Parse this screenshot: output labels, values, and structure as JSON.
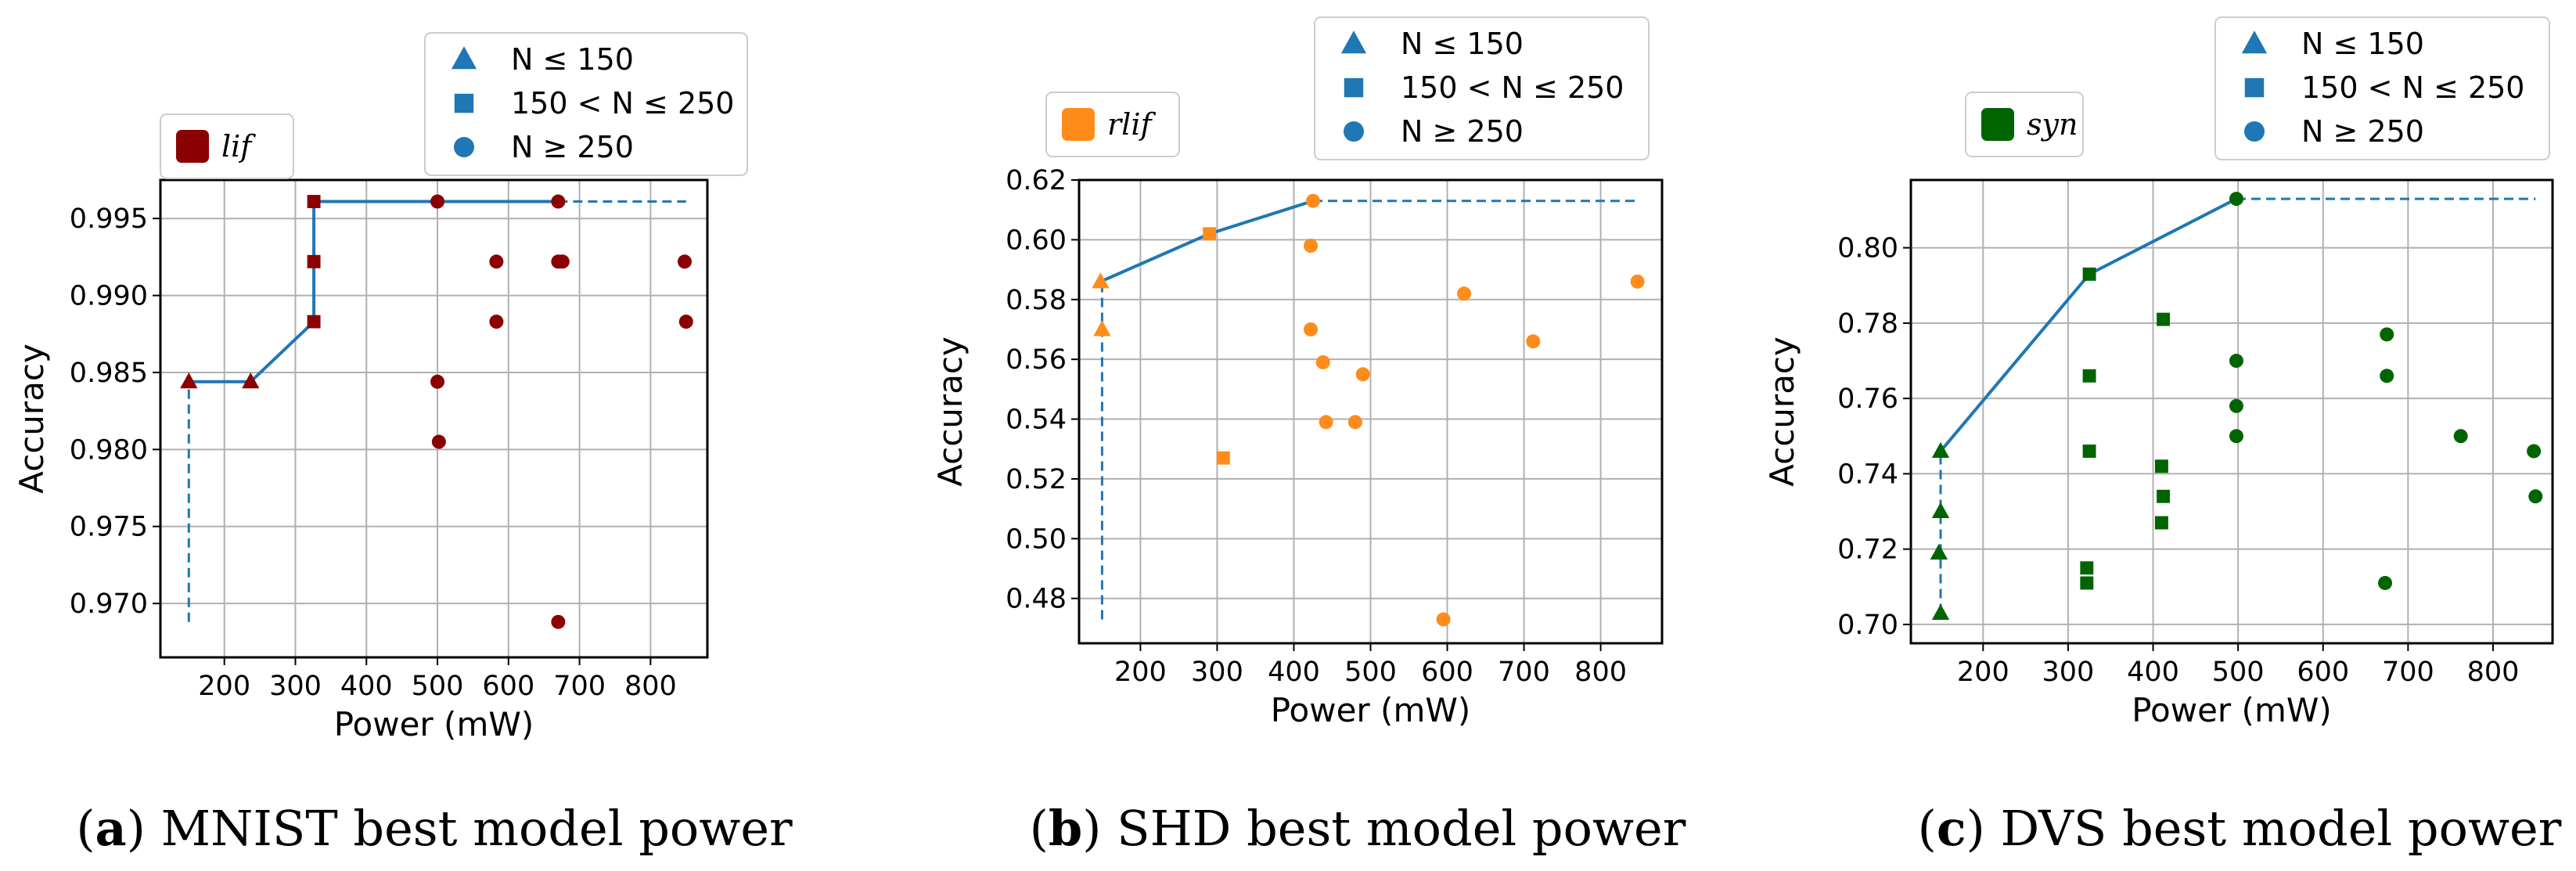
{
  "chart_data": [
    {
      "type": "scatter",
      "id": "a",
      "xlabel": "Power (mW)",
      "ylabel": "Accuracy",
      "xlim": [
        110,
        880
      ],
      "ylim": [
        0.9665,
        0.9975
      ],
      "xticks": [
        200,
        300,
        400,
        500,
        600,
        700,
        800
      ],
      "yticks": [
        0.97,
        0.975,
        0.98,
        0.985,
        0.99,
        0.995
      ],
      "ytick_labels": [
        "0.970",
        "0.975",
        "0.980",
        "0.985",
        "0.990",
        "0.995"
      ],
      "marker_color": "#8b0000",
      "model_label": "lif",
      "legend_labels": [
        "N ≤ 150",
        "150 < N ≤ 250",
        "N ≥ 250"
      ],
      "points": [
        {
          "x": 150,
          "y": 0.9844,
          "m": "triangle"
        },
        {
          "x": 237,
          "y": 0.9844,
          "m": "triangle"
        },
        {
          "x": 326,
          "y": 0.9961,
          "m": "square"
        },
        {
          "x": 326,
          "y": 0.9922,
          "m": "square"
        },
        {
          "x": 326,
          "y": 0.9883,
          "m": "square"
        },
        {
          "x": 500,
          "y": 0.9961,
          "m": "circle"
        },
        {
          "x": 500,
          "y": 0.9844,
          "m": "circle"
        },
        {
          "x": 502,
          "y": 0.9805,
          "m": "circle"
        },
        {
          "x": 583,
          "y": 0.9922,
          "m": "circle"
        },
        {
          "x": 583,
          "y": 0.9883,
          "m": "circle"
        },
        {
          "x": 670,
          "y": 0.9961,
          "m": "circle"
        },
        {
          "x": 670,
          "y": 0.9922,
          "m": "circle"
        },
        {
          "x": 676,
          "y": 0.9922,
          "m": "circle"
        },
        {
          "x": 670,
          "y": 0.9688,
          "m": "circle"
        },
        {
          "x": 848,
          "y": 0.9922,
          "m": "circle"
        },
        {
          "x": 850,
          "y": 0.9883,
          "m": "circle"
        }
      ],
      "frontier": [
        [
          150,
          0.9844
        ],
        [
          237,
          0.9844
        ],
        [
          326,
          0.9883
        ],
        [
          326,
          0.9961
        ],
        [
          500,
          0.9961
        ],
        [
          670,
          0.9961
        ]
      ],
      "dashed_vertical": [
        [
          150,
          0.9688
        ],
        [
          150,
          0.9844
        ]
      ],
      "dashed_horizontal": [
        [
          670,
          0.9961
        ],
        [
          850,
          0.9961
        ]
      ],
      "caption_label": "(a)",
      "caption_text": "MNIST best model power"
    },
    {
      "type": "scatter",
      "id": "b",
      "xlabel": "Power (mW)",
      "ylabel": "Accuracy",
      "xlim": [
        120,
        880
      ],
      "ylim": [
        0.465,
        0.62
      ],
      "xticks": [
        200,
        300,
        400,
        500,
        600,
        700,
        800
      ],
      "yticks": [
        0.48,
        0.5,
        0.52,
        0.54,
        0.56,
        0.58,
        0.6,
        0.62
      ],
      "ytick_labels": [
        "0.48",
        "0.50",
        "0.52",
        "0.54",
        "0.56",
        "0.58",
        "0.60",
        "0.62"
      ],
      "marker_color": "#ff8c1a",
      "model_label": "rlif",
      "legend_labels": [
        "N ≤ 150",
        "150 < N ≤ 250",
        "N ≥ 250"
      ],
      "points": [
        {
          "x": 148,
          "y": 0.586,
          "m": "triangle"
        },
        {
          "x": 150,
          "y": 0.57,
          "m": "triangle"
        },
        {
          "x": 290,
          "y": 0.602,
          "m": "square"
        },
        {
          "x": 308,
          "y": 0.527,
          "m": "square"
        },
        {
          "x": 425,
          "y": 0.613,
          "m": "circle"
        },
        {
          "x": 422,
          "y": 0.598,
          "m": "circle"
        },
        {
          "x": 422,
          "y": 0.57,
          "m": "circle"
        },
        {
          "x": 438,
          "y": 0.559,
          "m": "circle"
        },
        {
          "x": 442,
          "y": 0.539,
          "m": "circle"
        },
        {
          "x": 480,
          "y": 0.539,
          "m": "circle"
        },
        {
          "x": 490,
          "y": 0.555,
          "m": "circle"
        },
        {
          "x": 595,
          "y": 0.473,
          "m": "circle"
        },
        {
          "x": 622,
          "y": 0.582,
          "m": "circle"
        },
        {
          "x": 712,
          "y": 0.566,
          "m": "circle"
        },
        {
          "x": 848,
          "y": 0.586,
          "m": "circle"
        }
      ],
      "frontier": [
        [
          148,
          0.586
        ],
        [
          290,
          0.602
        ],
        [
          425,
          0.613
        ]
      ],
      "dashed_vertical": [
        [
          150,
          0.473
        ],
        [
          150,
          0.586
        ]
      ],
      "dashed_horizontal": [
        [
          425,
          0.613
        ],
        [
          848,
          0.613
        ]
      ],
      "caption_label": "(b)",
      "caption_text": "SHD best model power"
    },
    {
      "type": "scatter",
      "id": "c",
      "xlabel": "Power (mW)",
      "ylabel": "Accuracy",
      "xlim": [
        115,
        870
      ],
      "ylim": [
        0.695,
        0.818
      ],
      "xticks": [
        200,
        300,
        400,
        500,
        600,
        700,
        800
      ],
      "yticks": [
        0.7,
        0.72,
        0.74,
        0.76,
        0.78,
        0.8
      ],
      "ytick_labels": [
        "0.70",
        "0.72",
        "0.74",
        "0.76",
        "0.78",
        "0.80"
      ],
      "marker_color": "#006400",
      "model_label": "syn",
      "legend_labels": [
        "N ≤ 150",
        "150 < N ≤ 250",
        "N ≥ 250"
      ],
      "points": [
        {
          "x": 150,
          "y": 0.746,
          "m": "triangle"
        },
        {
          "x": 150,
          "y": 0.73,
          "m": "triangle"
        },
        {
          "x": 148,
          "y": 0.719,
          "m": "triangle"
        },
        {
          "x": 150,
          "y": 0.703,
          "m": "triangle"
        },
        {
          "x": 325,
          "y": 0.793,
          "m": "square"
        },
        {
          "x": 325,
          "y": 0.766,
          "m": "square"
        },
        {
          "x": 325,
          "y": 0.746,
          "m": "square"
        },
        {
          "x": 322,
          "y": 0.715,
          "m": "square"
        },
        {
          "x": 322,
          "y": 0.711,
          "m": "square"
        },
        {
          "x": 412,
          "y": 0.781,
          "m": "square"
        },
        {
          "x": 410,
          "y": 0.742,
          "m": "square"
        },
        {
          "x": 412,
          "y": 0.734,
          "m": "square"
        },
        {
          "x": 410,
          "y": 0.727,
          "m": "square"
        },
        {
          "x": 498,
          "y": 0.813,
          "m": "circle"
        },
        {
          "x": 498,
          "y": 0.77,
          "m": "circle"
        },
        {
          "x": 498,
          "y": 0.758,
          "m": "circle"
        },
        {
          "x": 498,
          "y": 0.75,
          "m": "circle"
        },
        {
          "x": 675,
          "y": 0.777,
          "m": "circle"
        },
        {
          "x": 675,
          "y": 0.766,
          "m": "circle"
        },
        {
          "x": 673,
          "y": 0.711,
          "m": "circle"
        },
        {
          "x": 762,
          "y": 0.75,
          "m": "circle"
        },
        {
          "x": 848,
          "y": 0.746,
          "m": "circle"
        },
        {
          "x": 850,
          "y": 0.734,
          "m": "circle"
        }
      ],
      "frontier": [
        [
          150,
          0.746
        ],
        [
          325,
          0.793
        ],
        [
          498,
          0.813
        ]
      ],
      "dashed_vertical": [
        [
          150,
          0.703
        ],
        [
          150,
          0.746
        ]
      ],
      "dashed_horizontal": [
        [
          498,
          0.813
        ],
        [
          850,
          0.813
        ]
      ],
      "caption_label": "(c)",
      "caption_text": "DVS best model power"
    }
  ],
  "colors": {
    "frontier": "#1f77b4",
    "legend_marker": "#1f77b4",
    "grid": "#b0b0b0"
  }
}
